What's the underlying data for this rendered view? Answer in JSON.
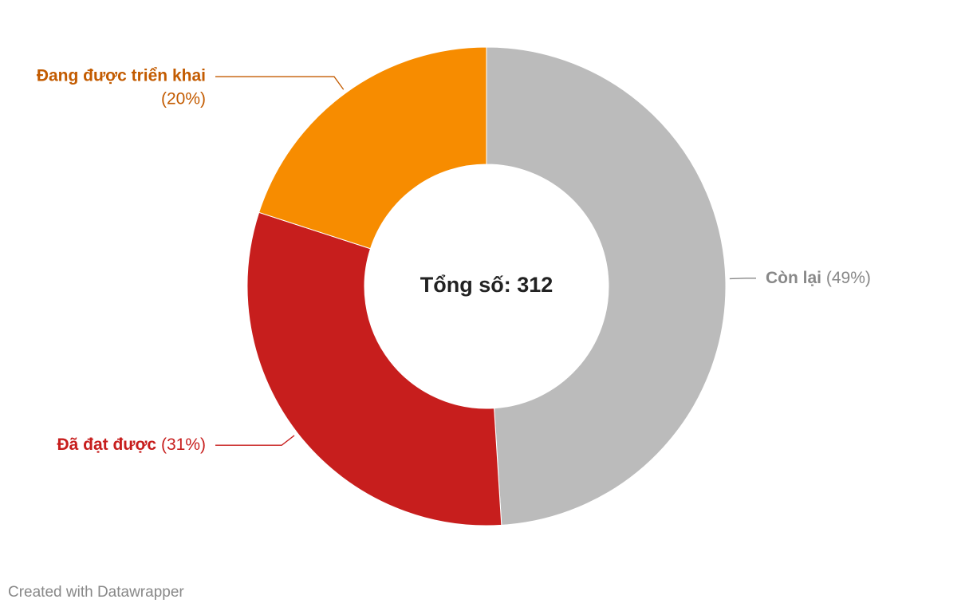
{
  "chart_data": {
    "type": "donut",
    "categories": [
      "Còn lại",
      "Đã đạt được",
      "Đang được triển khai"
    ],
    "values": [
      49,
      31,
      20
    ],
    "value_labels": [
      "(49%)",
      "(31%)",
      "(20%)"
    ],
    "colors": [
      "#bbbbbb",
      "#c71e1d",
      "#f78c00"
    ],
    "label_colors": [
      "#888888",
      "#c71e1d",
      "#c35b00"
    ],
    "center_label": "Tổng số: 312",
    "footer": "Created with Datawrapper"
  }
}
